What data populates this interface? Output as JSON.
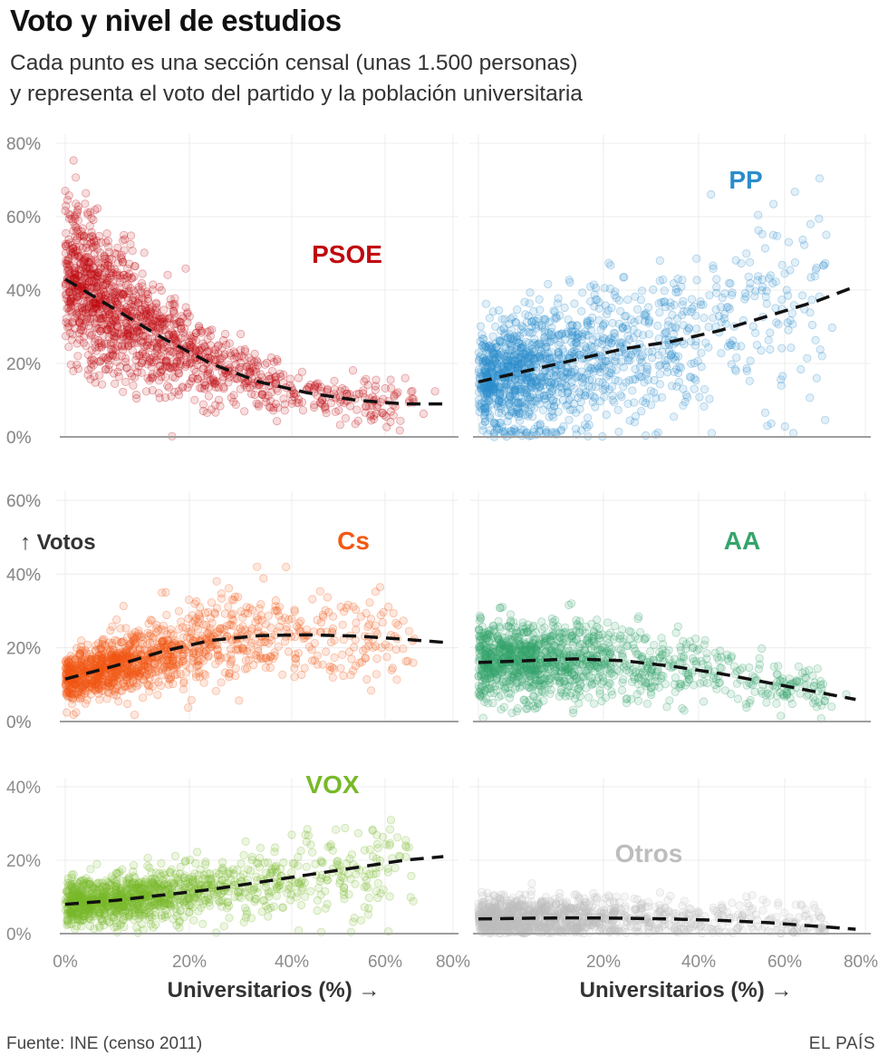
{
  "header": {
    "title": "Voto y nivel de estudios",
    "subtitle_line1": "Cada punto es una sección censal (unas 1.500 personas)",
    "subtitle_line2": "y representa el voto del partido y la población universitaria"
  },
  "footer": {
    "source": "Fuente: INE (censo 2011)",
    "brand": "EL PAÍS"
  },
  "chart_data": {
    "type": "scatter",
    "x_label": "Universitarios (%) →",
    "y_label": "↑ Votos",
    "x_ticks": [
      "0%",
      "20%",
      "40%",
      "60%",
      "80%"
    ],
    "x_range": [
      0,
      80
    ],
    "panels": [
      {
        "party": "PSOE",
        "color": "#c0080d",
        "y_range": [
          0,
          80
        ],
        "y_ticks": [
          "0%",
          "20%",
          "40%",
          "60%",
          "80%"
        ],
        "trend": [
          [
            0,
            43
          ],
          [
            10,
            35
          ],
          [
            20,
            27
          ],
          [
            30,
            20
          ],
          [
            40,
            15
          ],
          [
            50,
            12
          ],
          [
            60,
            10
          ],
          [
            70,
            9
          ],
          [
            78,
            9
          ]
        ]
      },
      {
        "party": "PP",
        "color": "#2b8ccb",
        "y_range": [
          0,
          80
        ],
        "y_ticks": [
          "0%",
          "20%",
          "40%",
          "60%",
          "80%"
        ],
        "trend": [
          [
            0,
            15
          ],
          [
            10,
            18
          ],
          [
            20,
            21
          ],
          [
            30,
            24
          ],
          [
            40,
            26
          ],
          [
            50,
            29
          ],
          [
            60,
            33
          ],
          [
            70,
            37
          ],
          [
            78,
            41
          ]
        ]
      },
      {
        "party": "Cs",
        "color": "#f35812",
        "y_range": [
          0,
          60
        ],
        "y_ticks": [
          "0%",
          "20%",
          "40%",
          "60%"
        ],
        "trend": [
          [
            0,
            11.5
          ],
          [
            10,
            15
          ],
          [
            20,
            19
          ],
          [
            30,
            22
          ],
          [
            40,
            23.3
          ],
          [
            50,
            23.5
          ],
          [
            60,
            23.2
          ],
          [
            70,
            22.3
          ],
          [
            78,
            21.5
          ]
        ]
      },
      {
        "party": "AA",
        "color": "#34a46b",
        "y_range": [
          0,
          60
        ],
        "y_ticks": [
          "0%",
          "20%",
          "40%",
          "60%"
        ],
        "trend": [
          [
            0,
            16
          ],
          [
            10,
            16.5
          ],
          [
            20,
            17
          ],
          [
            30,
            16.5
          ],
          [
            40,
            15
          ],
          [
            50,
            13
          ],
          [
            60,
            10.5
          ],
          [
            70,
            8
          ],
          [
            78,
            6
          ]
        ]
      },
      {
        "party": "VOX",
        "color": "#77b928",
        "y_range": [
          0,
          40
        ],
        "y_ticks": [
          "0%",
          "20%",
          "40%"
        ],
        "trend": [
          [
            0,
            8
          ],
          [
            10,
            9
          ],
          [
            20,
            10.5
          ],
          [
            30,
            12
          ],
          [
            40,
            14
          ],
          [
            50,
            16
          ],
          [
            60,
            18
          ],
          [
            70,
            20
          ],
          [
            78,
            21
          ]
        ]
      },
      {
        "party": "Otros",
        "color": "#bdbdbd",
        "y_range": [
          0,
          40
        ],
        "y_ticks": [],
        "trend": [
          [
            0,
            4
          ],
          [
            10,
            4.2
          ],
          [
            20,
            4.3
          ],
          [
            30,
            4.2
          ],
          [
            40,
            4
          ],
          [
            50,
            3.6
          ],
          [
            60,
            3
          ],
          [
            70,
            2
          ],
          [
            78,
            1.2
          ]
        ]
      }
    ]
  }
}
